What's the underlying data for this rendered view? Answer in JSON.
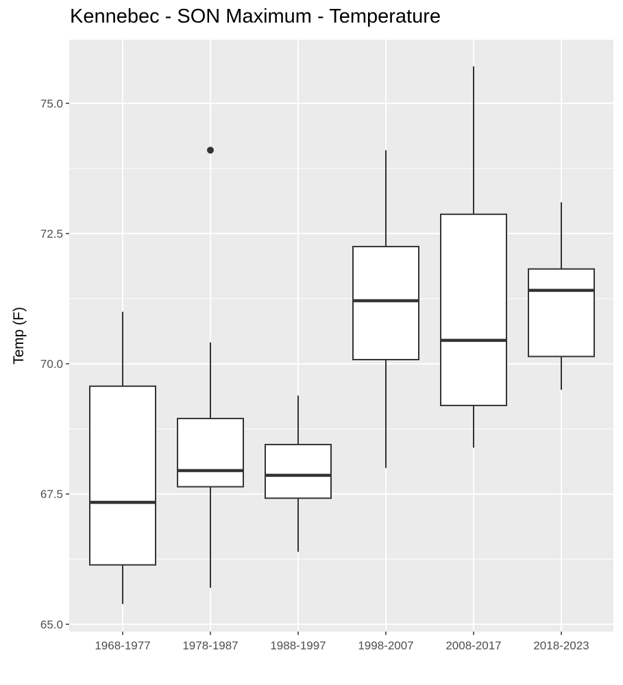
{
  "chart_data": {
    "type": "boxplot",
    "title": "Kennebec - SON Maximum - Temperature",
    "xlabel": "",
    "ylabel": "Temp (F)",
    "ylim": [
      64.86,
      76.22
    ],
    "yticks": [
      65.0,
      67.5,
      70.0,
      72.5,
      75.0
    ],
    "ytick_labels": [
      "65.0",
      "67.5",
      "70.0",
      "72.5",
      "75.0"
    ],
    "grid": true,
    "categories": [
      "1968-1977",
      "1978-1987",
      "1988-1997",
      "1998-2007",
      "2008-2017",
      "2018-2023"
    ],
    "boxes": [
      {
        "whisker_low": 65.39,
        "q1": 66.14,
        "median": 67.34,
        "q3": 69.57,
        "whisker_high": 71.0,
        "outliers": []
      },
      {
        "whisker_low": 65.7,
        "q1": 67.64,
        "median": 67.95,
        "q3": 68.95,
        "whisker_high": 70.41,
        "outliers": [
          74.1
        ]
      },
      {
        "whisker_low": 66.39,
        "q1": 67.42,
        "median": 67.86,
        "q3": 68.45,
        "whisker_high": 69.39,
        "outliers": []
      },
      {
        "whisker_low": 68.0,
        "q1": 70.08,
        "median": 71.21,
        "q3": 72.25,
        "whisker_high": 74.1,
        "outliers": []
      },
      {
        "whisker_low": 68.39,
        "q1": 69.2,
        "median": 70.45,
        "q3": 72.87,
        "whisker_high": 75.71,
        "outliers": []
      },
      {
        "whisker_low": 69.5,
        "q1": 70.14,
        "median": 71.41,
        "q3": 71.82,
        "whisker_high": 73.1,
        "outliers": []
      }
    ],
    "colors": {
      "panel": "#ebebeb",
      "grid": "#ffffff",
      "box_line": "#333333",
      "box_fill": "#ffffff"
    }
  }
}
